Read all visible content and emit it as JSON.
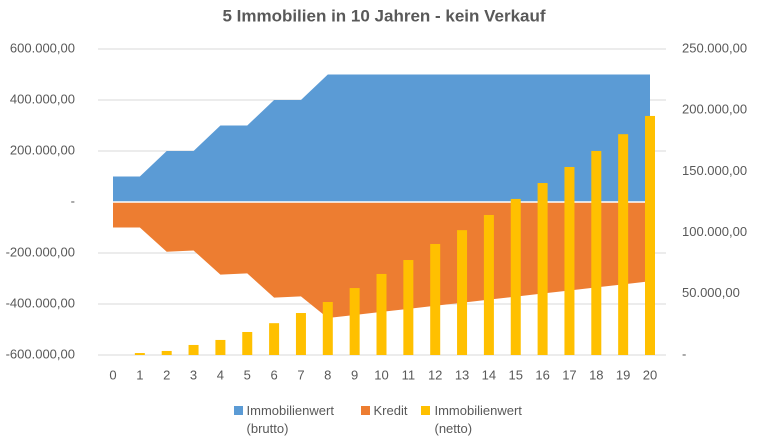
{
  "chart_data": {
    "type": "combo",
    "title": "5 Immobilien in 10 Jahren - kein Verkauf",
    "categories": [
      "0",
      "1",
      "2",
      "3",
      "4",
      "5",
      "6",
      "7",
      "8",
      "9",
      "10",
      "11",
      "12",
      "13",
      "14",
      "15",
      "16",
      "17",
      "18",
      "19",
      "20"
    ],
    "series": [
      {
        "name": "Immobilienwert (brutto)",
        "type": "area",
        "color": "#5b9bd5",
        "values": [
          100000,
          100000,
          200000,
          200000,
          300000,
          300000,
          400000,
          400000,
          500000,
          500000,
          500000,
          500000,
          500000,
          500000,
          500000,
          500000,
          500000,
          500000,
          500000,
          500000,
          500000
        ]
      },
      {
        "name": "Kredit",
        "type": "area",
        "color": "#ed7d31",
        "values": [
          -100000,
          -100000,
          -195000,
          -190000,
          -285000,
          -280000,
          -375000,
          -370000,
          -455000,
          -443000,
          -431000,
          -419000,
          -407000,
          -395000,
          -383000,
          -371000,
          -359000,
          -347000,
          -335000,
          -323000,
          -311000
        ]
      },
      {
        "name": "Immobilienwert (netto)",
        "type": "bar",
        "axis": "y2",
        "color": "#ffc000",
        "values": [
          0,
          1600,
          3300,
          8200,
          12300,
          18800,
          26000,
          34300,
          43300,
          54700,
          66200,
          77600,
          90700,
          102000,
          114400,
          127500,
          140500,
          153600,
          166700,
          180400,
          195300
        ]
      }
    ],
    "ylim": [
      -600000,
      600000
    ],
    "yticks": [
      {
        "value": -600000,
        "label": "-600.000,00"
      },
      {
        "value": -400000,
        "label": "-400.000,00"
      },
      {
        "value": -200000,
        "label": "-200.000,00"
      },
      {
        "value": 0,
        "label": "-"
      },
      {
        "value": 200000,
        "label": "200.000,00"
      },
      {
        "value": 400000,
        "label": "400.000,00"
      },
      {
        "value": 600000,
        "label": "600.000,00"
      }
    ],
    "y2lim": [
      0,
      250000
    ],
    "y2ticks": [
      {
        "value": 0,
        "label": "-"
      },
      {
        "value": 50000,
        "label": "50.000,00"
      },
      {
        "value": 100000,
        "label": "100.000,00"
      },
      {
        "value": 150000,
        "label": "150.000,00"
      },
      {
        "value": 200000,
        "label": "200.000,00"
      },
      {
        "value": 250000,
        "label": "250.000,00"
      }
    ],
    "grid": true
  }
}
